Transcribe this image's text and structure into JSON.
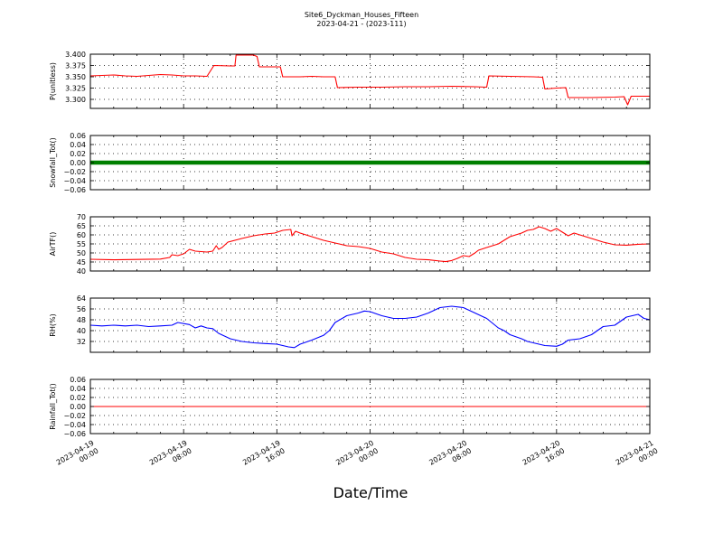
{
  "figure": {
    "title": "Site6_Dyckman_Houses_Fifteen",
    "subtitle": "2023-04-21 - (2023-111)",
    "xlabel": "Date/Time",
    "x_ticks": [
      {
        "l1": "2023-04-19",
        "l2": "00:00",
        "h": 0
      },
      {
        "l1": "2023-04-19",
        "l2": "08:00",
        "h": 8
      },
      {
        "l1": "2023-04-19",
        "l2": "16:00",
        "h": 16
      },
      {
        "l1": "2023-04-20",
        "l2": "00:00",
        "h": 24
      },
      {
        "l1": "2023-04-20",
        "l2": "08:00",
        "h": 32
      },
      {
        "l1": "2023-04-20",
        "l2": "16:00",
        "h": 40
      },
      {
        "l1": "2023-04-21",
        "l2": "00:00",
        "h": 48
      }
    ]
  },
  "chart_data": [
    {
      "type": "line",
      "ylabel": "P(unitless)",
      "color": "#ff0000",
      "ylim": [
        3.28,
        3.4
      ],
      "yticks": [
        "3.300",
        "3.325",
        "3.350",
        "3.375",
        "3.400"
      ],
      "ytick_values": [
        3.3,
        3.325,
        3.35,
        3.375,
        3.4
      ],
      "xlim": [
        0,
        48
      ],
      "points": [
        [
          0,
          3.352
        ],
        [
          1,
          3.353
        ],
        [
          2,
          3.354
        ],
        [
          3,
          3.352
        ],
        [
          4,
          3.351
        ],
        [
          5,
          3.353
        ],
        [
          6,
          3.355
        ],
        [
          7,
          3.354
        ],
        [
          8,
          3.352
        ],
        [
          9,
          3.352
        ],
        [
          10,
          3.351
        ],
        [
          10.6,
          3.375
        ],
        [
          12,
          3.374
        ],
        [
          12.4,
          3.374
        ],
        [
          12.5,
          3.398
        ],
        [
          14,
          3.398
        ],
        [
          14.3,
          3.395
        ],
        [
          14.5,
          3.372
        ],
        [
          16,
          3.372
        ],
        [
          16.3,
          3.372
        ],
        [
          16.5,
          3.35
        ],
        [
          18,
          3.35
        ],
        [
          19,
          3.351
        ],
        [
          20,
          3.35
        ],
        [
          21,
          3.35
        ],
        [
          21.2,
          3.326
        ],
        [
          23,
          3.327
        ],
        [
          25,
          3.327
        ],
        [
          27,
          3.328
        ],
        [
          29,
          3.328
        ],
        [
          31,
          3.329
        ],
        [
          33,
          3.328
        ],
        [
          34,
          3.327
        ],
        [
          34.2,
          3.352
        ],
        [
          36,
          3.351
        ],
        [
          38,
          3.35
        ],
        [
          38.8,
          3.349
        ],
        [
          39,
          3.323
        ],
        [
          40,
          3.325
        ],
        [
          40.8,
          3.326
        ],
        [
          41,
          3.304
        ],
        [
          43,
          3.304
        ],
        [
          45,
          3.305
        ],
        [
          45.8,
          3.306
        ],
        [
          46.1,
          3.288
        ],
        [
          46.4,
          3.307
        ],
        [
          47,
          3.307
        ],
        [
          48,
          3.307
        ]
      ]
    },
    {
      "type": "scatter",
      "ylabel": "Snowfall_Tot()",
      "color": "#008000",
      "ylim": [
        -0.06,
        0.06
      ],
      "yticks": [
        "−0.06",
        "−0.04",
        "−0.02",
        "0.00",
        "0.02",
        "0.04",
        "0.06"
      ],
      "ytick_values": [
        -0.06,
        -0.04,
        -0.02,
        0,
        0.02,
        0.04,
        0.06
      ],
      "xlim": [
        0,
        48
      ],
      "points": [
        [
          0,
          0
        ],
        [
          48,
          0
        ]
      ]
    },
    {
      "type": "line",
      "ylabel": "AirTF()",
      "color": "#ff0000",
      "ylim": [
        40,
        70
      ],
      "yticks": [
        "40",
        "45",
        "50",
        "55",
        "60",
        "65",
        "70"
      ],
      "ytick_values": [
        40,
        45,
        50,
        55,
        60,
        65,
        70
      ],
      "xlim": [
        0,
        48
      ],
      "points": [
        [
          0,
          46.5
        ],
        [
          2,
          46.2
        ],
        [
          4,
          46.4
        ],
        [
          6,
          46.6
        ],
        [
          6.8,
          47.5
        ],
        [
          7,
          49
        ],
        [
          7.5,
          48.5
        ],
        [
          8,
          49.5
        ],
        [
          8.5,
          52
        ],
        [
          9,
          51
        ],
        [
          10,
          50.5
        ],
        [
          10.5,
          51
        ],
        [
          10.8,
          54
        ],
        [
          11,
          52
        ],
        [
          11.3,
          53
        ],
        [
          11.8,
          56
        ],
        [
          13,
          58
        ],
        [
          14,
          59.5
        ],
        [
          15,
          60.5
        ],
        [
          15.8,
          61
        ],
        [
          16.5,
          62.5
        ],
        [
          17.2,
          63
        ],
        [
          17.3,
          59.5
        ],
        [
          17.6,
          62
        ],
        [
          18,
          61
        ],
        [
          19,
          59
        ],
        [
          20,
          57
        ],
        [
          21,
          55.5
        ],
        [
          22,
          54
        ],
        [
          23,
          53.5
        ],
        [
          24,
          52.5
        ],
        [
          25,
          50.5
        ],
        [
          26,
          49.5
        ],
        [
          27,
          47.5
        ],
        [
          28,
          46.5
        ],
        [
          29,
          46.2
        ],
        [
          30,
          45.5
        ],
        [
          30.5,
          45.2
        ],
        [
          31,
          45.8
        ],
        [
          31.5,
          47
        ],
        [
          32,
          48.5
        ],
        [
          32.5,
          48
        ],
        [
          33,
          50
        ],
        [
          33.3,
          51.5
        ],
        [
          34,
          53
        ],
        [
          35,
          55
        ],
        [
          35.5,
          57
        ],
        [
          36,
          59
        ],
        [
          37,
          61
        ],
        [
          37.5,
          62.5
        ],
        [
          38,
          63
        ],
        [
          38.5,
          64.5
        ],
        [
          39,
          63.5
        ],
        [
          39.5,
          62
        ],
        [
          40,
          63.5
        ],
        [
          40.5,
          61.5
        ],
        [
          41,
          59.5
        ],
        [
          41.5,
          61
        ],
        [
          42,
          60
        ],
        [
          43,
          58
        ],
        [
          44,
          56
        ],
        [
          45,
          54.5
        ],
        [
          46,
          54.3
        ],
        [
          47,
          54.8
        ],
        [
          48,
          55
        ]
      ]
    },
    {
      "type": "line",
      "ylabel": "RH(%)",
      "color": "#0000ff",
      "ylim": [
        24,
        64
      ],
      "yticks": [
        "32",
        "40",
        "48",
        "56",
        "64"
      ],
      "ytick_values": [
        32,
        40,
        48,
        56,
        64
      ],
      "xlim": [
        0,
        48
      ],
      "points": [
        [
          0,
          44
        ],
        [
          1,
          43.5
        ],
        [
          2,
          44
        ],
        [
          3,
          43.5
        ],
        [
          4,
          44
        ],
        [
          5,
          43
        ],
        [
          6,
          43.5
        ],
        [
          7,
          44
        ],
        [
          7.5,
          46
        ],
        [
          8.5,
          44.5
        ],
        [
          9,
          42
        ],
        [
          9.5,
          43.5
        ],
        [
          10,
          42
        ],
        [
          10.5,
          41.5
        ],
        [
          11,
          38
        ],
        [
          12,
          34
        ],
        [
          13,
          32
        ],
        [
          14,
          31
        ],
        [
          15,
          30.5
        ],
        [
          16,
          30
        ],
        [
          17,
          28
        ],
        [
          17.5,
          27.5
        ],
        [
          18,
          30
        ],
        [
          19,
          33
        ],
        [
          20,
          36.5
        ],
        [
          20.5,
          40
        ],
        [
          21,
          46
        ],
        [
          22,
          51
        ],
        [
          23,
          53
        ],
        [
          23.5,
          54.5
        ],
        [
          24,
          54
        ],
        [
          25,
          51
        ],
        [
          26,
          49
        ],
        [
          27,
          49
        ],
        [
          28,
          50
        ],
        [
          29,
          53
        ],
        [
          30,
          57
        ],
        [
          31,
          58
        ],
        [
          32,
          57
        ],
        [
          33,
          53
        ],
        [
          33.5,
          51
        ],
        [
          34,
          49
        ],
        [
          35,
          42
        ],
        [
          35.5,
          40
        ],
        [
          36,
          37
        ],
        [
          37,
          34
        ],
        [
          37.5,
          32
        ],
        [
          38,
          31
        ],
        [
          39,
          29
        ],
        [
          40,
          28.5
        ],
        [
          40.5,
          30
        ],
        [
          41,
          33
        ],
        [
          42,
          34
        ],
        [
          43,
          37
        ],
        [
          44,
          43
        ],
        [
          45,
          44
        ],
        [
          46,
          50
        ],
        [
          47,
          52
        ],
        [
          47.5,
          49
        ],
        [
          48,
          48
        ]
      ]
    },
    {
      "type": "line",
      "ylabel": "Rainfall_Tot()",
      "color": "#ff0000",
      "ylim": [
        -0.06,
        0.06
      ],
      "yticks": [
        "−0.06",
        "−0.04",
        "−0.02",
        "0.00",
        "0.02",
        "0.04",
        "0.06"
      ],
      "ytick_values": [
        -0.06,
        -0.04,
        -0.02,
        0,
        0.02,
        0.04,
        0.06
      ],
      "xlim": [
        0,
        48
      ],
      "points": [
        [
          0,
          0
        ],
        [
          48,
          0
        ]
      ]
    }
  ]
}
